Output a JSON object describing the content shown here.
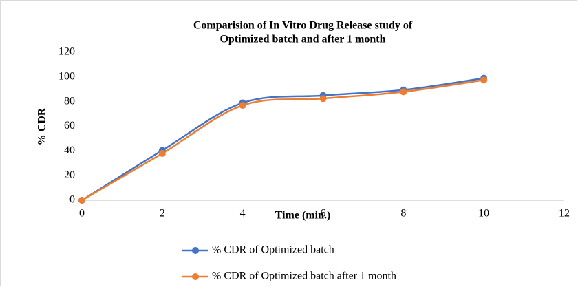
{
  "chart_data": {
    "type": "line",
    "title": [
      "Comparision of In Vitro Drug Release study of",
      "Optimized batch and after 1 month"
    ],
    "x_label": "Time (min.)",
    "y_label": "% CDR",
    "x": [
      0,
      2,
      4,
      6,
      8,
      10
    ],
    "series": [
      {
        "name": "% CDR of Optimized batch",
        "color": "#4472c4",
        "values": [
          0,
          40.5,
          79,
          85,
          89.5,
          99
        ]
      },
      {
        "name": "% CDR of Optimized batch after 1 month",
        "color": "#ed7d31",
        "values": [
          0,
          38,
          77,
          82.5,
          88,
          97.5
        ]
      }
    ],
    "xlim": [
      0,
      12
    ],
    "xticks": [
      0,
      2,
      4,
      6,
      8,
      10,
      12
    ],
    "ylim": [
      0,
      120
    ],
    "yticks": [
      0,
      20,
      40,
      60,
      80,
      100,
      120
    ],
    "grid": false,
    "smooth": true,
    "legend": "bottom"
  }
}
